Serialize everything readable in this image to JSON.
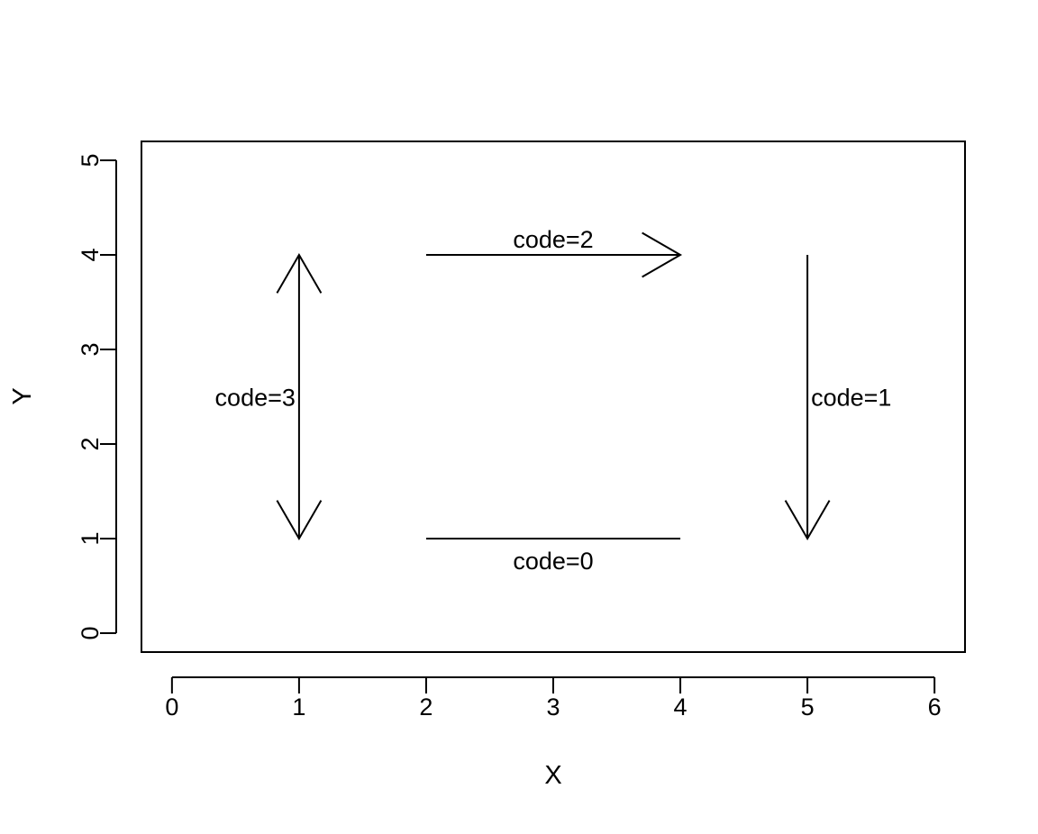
{
  "chart_data": {
    "type": "scatter",
    "title": "",
    "xlabel": "X",
    "ylabel": "Y",
    "xlim": [
      -0.24,
      6.24
    ],
    "ylim": [
      -0.2,
      5.2
    ],
    "x_ticks": [
      "0",
      "1",
      "2",
      "3",
      "4",
      "5",
      "6"
    ],
    "y_ticks": [
      "0",
      "1",
      "2",
      "3",
      "4",
      "5"
    ],
    "grid": false,
    "arrows": [
      {
        "code": 0,
        "x0": 2,
        "y0": 1,
        "x1": 4,
        "y1": 1,
        "label": "code=0",
        "head_start": false,
        "head_end": false
      },
      {
        "code": 1,
        "x0": 5,
        "y0": 4,
        "x1": 5,
        "y1": 1,
        "label": "code=1",
        "head_start": false,
        "head_end": true
      },
      {
        "code": 2,
        "x0": 2,
        "y0": 4,
        "x1": 4,
        "y1": 4,
        "label": "code=2",
        "head_start": false,
        "head_end": true
      },
      {
        "code": 3,
        "x0": 1,
        "y0": 4,
        "x1": 1,
        "y1": 1,
        "label": "code=3",
        "head_start": true,
        "head_end": true
      }
    ],
    "colors": {
      "line": "#000000",
      "background": "#ffffff"
    }
  }
}
